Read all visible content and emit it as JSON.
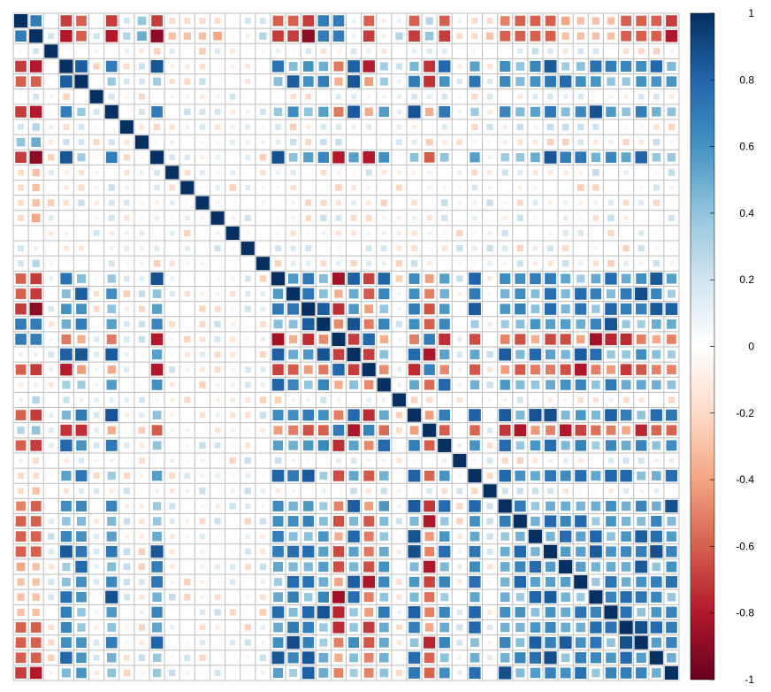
{
  "chart_data": {
    "type": "heatmap",
    "variant": "correlation-matrix-square-glyphs",
    "n": 44,
    "title": "",
    "xlabel": "",
    "ylabel": "",
    "row_labels": [],
    "col_labels": [],
    "value_range": [
      -1,
      1
    ],
    "colorbar": {
      "position": "right",
      "ticks": [
        {
          "value": 1,
          "label": "1"
        },
        {
          "value": 0.8,
          "label": "0.8"
        },
        {
          "value": 0.6,
          "label": "0.6"
        },
        {
          "value": 0.4,
          "label": "0.4"
        },
        {
          "value": 0.2,
          "label": "0.2"
        },
        {
          "value": 0,
          "label": "0"
        },
        {
          "value": -0.2,
          "label": "-0.2"
        },
        {
          "value": -0.4,
          "label": "-0.4"
        },
        {
          "value": -0.6,
          "label": "-0.6"
        },
        {
          "value": -0.8,
          "label": "-0.8"
        },
        {
          "value": -1,
          "label": "-1"
        }
      ]
    },
    "palette": [
      "#67001f",
      "#b2182b",
      "#d6604d",
      "#f4a582",
      "#fddbc7",
      "#ffffff",
      "#d1e5f0",
      "#92c5de",
      "#4393c3",
      "#2166ac",
      "#053061"
    ],
    "grid": true,
    "grid_color": "#bebebe",
    "group_a": [
      0,
      3,
      4,
      6,
      9,
      17,
      18,
      19,
      20,
      22,
      24,
      26,
      28,
      30,
      32,
      33,
      34,
      35,
      36,
      37,
      38,
      39,
      40,
      41,
      42,
      43
    ],
    "group_b": [
      1,
      21,
      23,
      27
    ],
    "values_note": "Only the two leading rows are listed exactly; the matrix is symmetric with a diagonal of 1.",
    "rows_estimated": [
      [
        1,
        0.7,
        0.05,
        -0.7,
        -0.6,
        0.05,
        -0.7,
        0.2,
        0.4,
        -0.7,
        -0.2,
        -0.2,
        -0.2,
        -0.2,
        0.05,
        0.2,
        0.2,
        -0.6,
        -0.6,
        -0.7,
        0.7,
        0.7,
        0.1,
        -0.6,
        -0.1,
        0.1,
        -0.6,
        0.3,
        -0.6,
        -0.1,
        -0.2,
        -0.2,
        -0.5,
        -0.6,
        -0.6,
        -0.6,
        -0.4,
        -0.3,
        -0.3,
        -0.3,
        -0.6,
        -0.6,
        -0.6,
        -0.7
      ],
      [
        0.7,
        1,
        0.2,
        -0.8,
        -0.6,
        0.2,
        -0.8,
        0.3,
        0.5,
        -0.9,
        -0.3,
        -0.3,
        -0.3,
        -0.4,
        0.05,
        0.1,
        0.3,
        -0.7,
        -0.7,
        -0.9,
        0.7,
        0.7,
        0.1,
        -0.7,
        0.1,
        0.3,
        -0.7,
        0.4,
        -0.7,
        -0.2,
        -0.2,
        -0.3,
        -0.6,
        -0.6,
        -0.6,
        -0.6,
        -0.3,
        -0.3,
        -0.3,
        -0.3,
        -0.6,
        -0.6,
        -0.6,
        -0.8
      ]
    ]
  }
}
